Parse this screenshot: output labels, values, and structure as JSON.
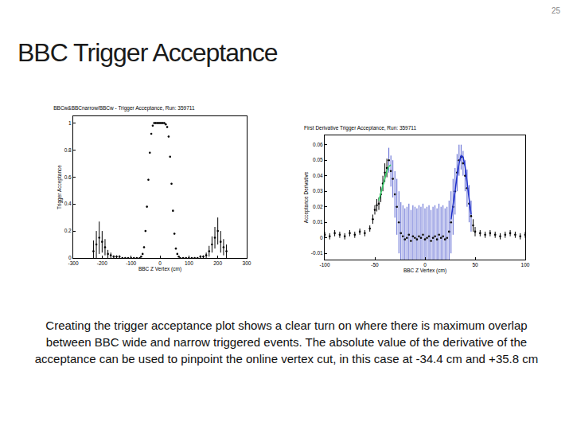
{
  "page_number": "25",
  "title": "BBC Trigger Acceptance",
  "caption": "Creating the trigger acceptance plot shows a clear turn on where there is maximum overlap between BBC wide and narrow triggered events. The absolute value of the derivative of the acceptance can be used to pinpoint the online vertex cut, in this case at -34.4 cm and +35.8 cm",
  "chart_data": [
    {
      "type": "scatter",
      "title": "BBCw&BBCnarrow/BBCw - Trigger Acceptance, Run: 359711",
      "x_label": "BBC Z Vertex (cm)",
      "y_label": "Trigger Acceptance",
      "xlim": [
        -300,
        300
      ],
      "xticks": [
        -300,
        -200,
        -100,
        0,
        100,
        200,
        300
      ],
      "ylim": [
        0,
        1.05
      ],
      "yticks": [
        0,
        0.2,
        0.4,
        0.6,
        0.8,
        1
      ],
      "grid": false,
      "series": [
        {
          "type": "scatter",
          "color": "#000000",
          "marker": "dot",
          "x": [
            -230,
            -220,
            -210,
            -200,
            -190,
            -180,
            -170,
            -160,
            -150,
            -140,
            -130,
            -120,
            -110,
            -100,
            -90,
            -80,
            -70,
            -65,
            -60,
            -55,
            -50,
            -45,
            -40,
            -35,
            -30,
            -25,
            -20,
            -15,
            -10,
            -5,
            0,
            5,
            10,
            15,
            20,
            25,
            30,
            35,
            40,
            45,
            50,
            55,
            60,
            65,
            70,
            80,
            90,
            100,
            110,
            120,
            130,
            140,
            150,
            160,
            170,
            180,
            190,
            200,
            210,
            220,
            230
          ],
          "values": [
            0.05,
            0.1,
            0.15,
            0.12,
            0.08,
            0.03,
            0.02,
            0.01,
            0.01,
            0.01,
            0,
            0,
            0,
            0,
            0,
            0,
            0,
            0.01,
            0.03,
            0.08,
            0.2,
            0.38,
            0.58,
            0.78,
            0.92,
            0.98,
            1,
            1,
            1,
            1,
            1,
            1,
            1,
            1,
            0.99,
            0.97,
            0.9,
            0.75,
            0.55,
            0.35,
            0.18,
            0.07,
            0.03,
            0.01,
            0,
            0,
            0,
            0,
            0,
            0,
            0,
            0.01,
            0.01,
            0.02,
            0.05,
            0.1,
            0.15,
            0.2,
            0.12,
            0.08,
            0.05
          ],
          "errors": [
            0.08,
            0.1,
            0.12,
            0.08,
            0.06,
            0.03,
            0.02,
            0.01,
            0.01,
            0.01,
            0.005,
            0.005,
            0.005,
            0.005,
            0.005,
            0.005,
            0.005,
            0.005,
            0.005,
            0.005,
            0.005,
            0.005,
            0.005,
            0.005,
            0.005,
            0.005,
            0.005,
            0.005,
            0.005,
            0.005,
            0.005,
            0.005,
            0.005,
            0.005,
            0.005,
            0.005,
            0.005,
            0.005,
            0.005,
            0.005,
            0.005,
            0.005,
            0.005,
            0.005,
            0.005,
            0.005,
            0.005,
            0.005,
            0.005,
            0.005,
            0.005,
            0.01,
            0.01,
            0.02,
            0.04,
            0.06,
            0.08,
            0.1,
            0.08,
            0.06,
            0.05
          ]
        }
      ]
    },
    {
      "type": "scatter",
      "title": "First Derivative Trigger Acceptance, Run: 359711",
      "x_label": "BBC Z Vertex (cm)",
      "y_label": "Acceptance Derivative",
      "xlim": [
        -100,
        100
      ],
      "xticks": [
        -100,
        -50,
        0,
        50,
        100
      ],
      "ylim": [
        -0.014,
        0.066
      ],
      "yticks": [
        -0.01,
        0,
        0.01,
        0.02,
        0.03,
        0.04,
        0.05,
        0.06
      ],
      "grid": false,
      "series": [
        {
          "type": "scatter",
          "color": "#000000",
          "marker": "dot",
          "x": [
            -100,
            -95,
            -90,
            -85,
            -80,
            -75,
            -70,
            -65,
            -60,
            -55,
            -52,
            -50,
            -48,
            -46,
            -44,
            -42,
            -40,
            -38
          ],
          "values": [
            0.002,
            0.001,
            0.003,
            0.002,
            0.001,
            0.003,
            0.002,
            0.004,
            0.003,
            0.006,
            0.012,
            0.018,
            0.021,
            0.022,
            0.028,
            0.035,
            0.042,
            0.045
          ],
          "errors": [
            0.002,
            0.002,
            0.002,
            0.002,
            0.002,
            0.002,
            0.002,
            0.002,
            0.002,
            0.002,
            0.003,
            0.003,
            0.004,
            0.004,
            0.005,
            0.005,
            0.006,
            0.006
          ]
        },
        {
          "type": "scatter",
          "color": "#5560d0",
          "marker": "dot",
          "x": [
            -36,
            -34,
            -32,
            -30,
            -28,
            -26,
            -24,
            -22,
            -20,
            -18,
            -16,
            -14,
            -12,
            -10,
            -8,
            -6,
            -4,
            -2,
            0,
            2,
            4,
            6,
            8,
            10,
            12,
            14,
            16,
            18,
            20,
            22,
            24,
            26,
            28,
            30,
            32,
            34,
            36,
            38,
            40,
            42,
            44,
            46
          ],
          "values": [
            0.05,
            0.043,
            0.038,
            0.028,
            0.02,
            0.01,
            0.003,
            0.001,
            -0.001,
            0,
            0.002,
            -0.002,
            0.001,
            0,
            -0.001,
            0.001,
            0,
            0.002,
            -0.001,
            0,
            0.001,
            -0.002,
            0,
            0.001,
            -0.001,
            0.002,
            0,
            0.001,
            -0.001,
            0,
            0.004,
            0.01,
            0.02,
            0.03,
            0.042,
            0.05,
            0.052,
            0.048,
            0.04,
            0.032,
            0.022,
            0.014
          ],
          "errors": [
            0.008,
            0.01,
            0.012,
            0.015,
            0.018,
            0.02,
            0.02,
            0.02,
            0.02,
            0.02,
            0.02,
            0.02,
            0.02,
            0.02,
            0.02,
            0.02,
            0.02,
            0.02,
            0.02,
            0.02,
            0.02,
            0.02,
            0.02,
            0.02,
            0.02,
            0.02,
            0.02,
            0.02,
            0.02,
            0.02,
            0.02,
            0.02,
            0.018,
            0.015,
            0.012,
            0.01,
            0.008,
            0.008,
            0.01,
            0.012,
            0.012,
            0.01
          ]
        },
        {
          "type": "scatter",
          "color": "#000000",
          "marker": "dot",
          "x": [
            48,
            50,
            55,
            60,
            65,
            70,
            75,
            80,
            85,
            90,
            95,
            100
          ],
          "values": [
            0.008,
            0.004,
            0.003,
            0.002,
            0.003,
            0.002,
            0.001,
            0.002,
            0.003,
            0.002,
            0.001,
            0.002
          ],
          "errors": [
            0.004,
            0.003,
            0.002,
            0.002,
            0.002,
            0.002,
            0.002,
            0.002,
            0.002,
            0.002,
            0.002,
            0.002
          ]
        },
        {
          "type": "line",
          "color": "#33cc66",
          "line_style": "solid",
          "x": [
            -46,
            -44,
            -42,
            -40,
            -38,
            -36,
            -34
          ],
          "values": [
            0.024,
            0.029,
            0.034,
            0.039,
            0.043,
            0.046,
            0.047
          ]
        },
        {
          "type": "line",
          "color": "#2233cc",
          "line_style": "solid",
          "x": [
            26,
            28,
            30,
            32,
            34,
            36,
            38,
            40,
            42,
            44,
            46
          ],
          "values": [
            0.012,
            0.02,
            0.03,
            0.04,
            0.048,
            0.053,
            0.052,
            0.046,
            0.036,
            0.025,
            0.015
          ]
        }
      ]
    }
  ]
}
